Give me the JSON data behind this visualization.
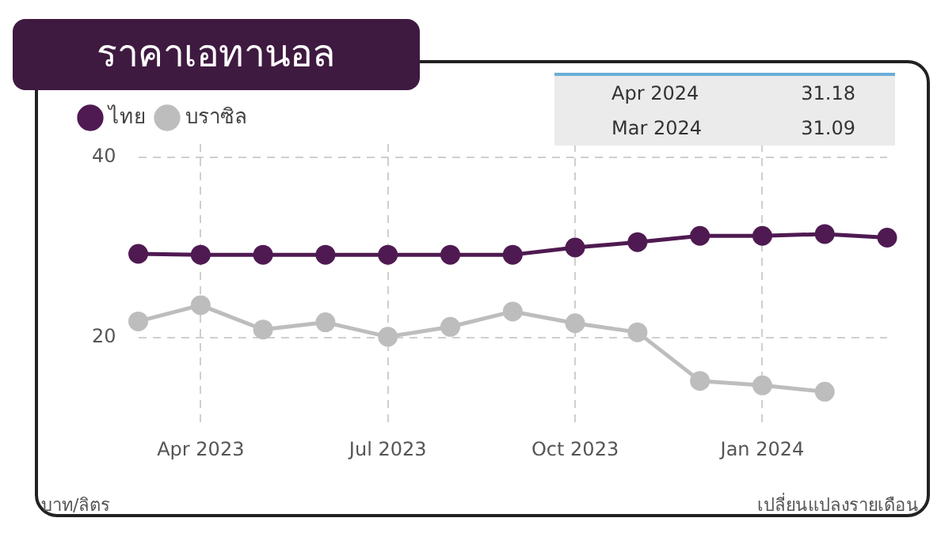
{
  "chart_data": {
    "type": "line",
    "title": "ราคาเอทานอล",
    "categories": [
      null,
      "Apr 2023",
      null,
      null,
      "Jul 2023",
      null,
      null,
      "Oct 2023",
      null,
      null,
      "Jan 2024",
      null,
      null
    ],
    "series": [
      {
        "name": "ไทย",
        "color": "#4f1a52",
        "values": [
          29.3,
          29.2,
          29.2,
          29.2,
          29.2,
          29.2,
          29.2,
          30.0,
          30.6,
          31.3,
          31.3,
          31.5,
          31.1
        ]
      },
      {
        "name": "บราซิล",
        "color": "#bdbdbd",
        "values": [
          21.8,
          23.6,
          20.9,
          21.7,
          20.1,
          21.2,
          22.9,
          21.6,
          20.6,
          15.2,
          14.7,
          14.0,
          null
        ]
      }
    ],
    "ylim": [
      10.5,
      41.5
    ],
    "yticks": [
      20,
      40
    ],
    "ylabel": "บาท/ลิตร",
    "grid": true,
    "legend": "top left",
    "marker": "circle",
    "line_style": "solid",
    "annotations": [
      "เปลี่ยนแปลงรายเดือน",
      "Apr 2024",
      "31.18",
      "Mar 2024",
      "31.09"
    ]
  }
}
